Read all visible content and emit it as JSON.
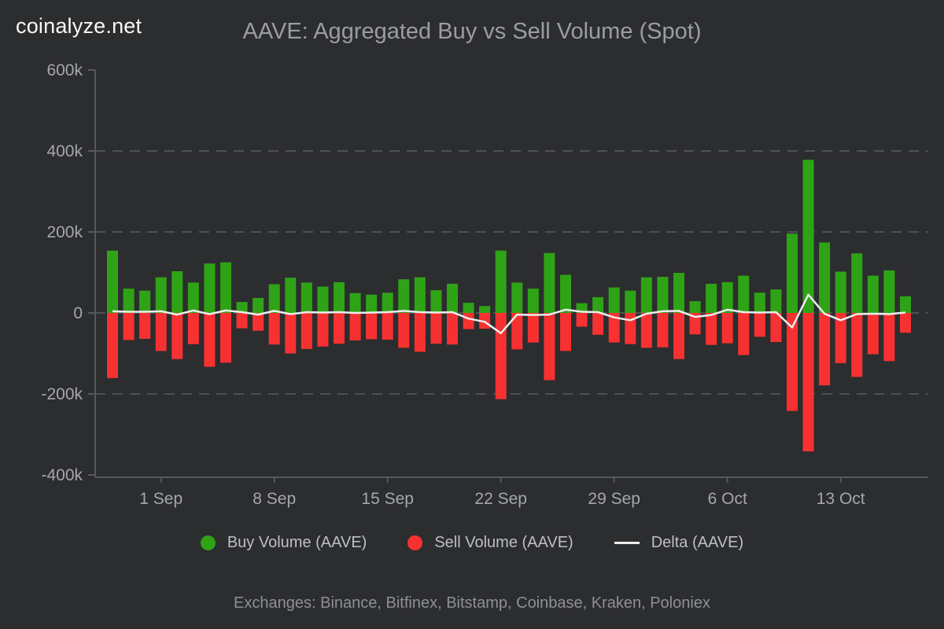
{
  "header": {
    "logo": "coinalyze.net",
    "title": "AAVE: Aggregated Buy vs Sell Volume (Spot)"
  },
  "legend": {
    "buy_label": "Buy Volume (AAVE)",
    "sell_label": "Sell Volume (AAVE)",
    "delta_label": "Delta (AAVE)"
  },
  "footer": {
    "exchanges_note": "Exchanges: Binance, Bitfinex, Bitstamp, Coinbase, Kraken, Poloniex"
  },
  "colors": {
    "background": "#2c2d2f",
    "buy_green": "#2fa316",
    "sell_red": "#f73131",
    "delta_line": "#ededed",
    "gridline": "#4e5154",
    "axis": "#56585b",
    "tick_label": "#a5a7a9",
    "title_text": "#9b9d9f",
    "legend_text": "#bdbfc1",
    "footer_text": "#8e9092",
    "logo_text": "#f8f8f8"
  },
  "chart_data": {
    "type": "bar",
    "title": "AAVE: Aggregated Buy vs Sell Volume (Spot)",
    "xlabel": "",
    "ylabel": "",
    "ylim": [
      -400000,
      600000
    ],
    "grid": "horizontal-dashed",
    "legend_position": "bottom",
    "y_ticks": [
      "600k",
      "400k",
      "200k",
      "0",
      "-200k",
      "-400k"
    ],
    "y_tick_values": [
      600000,
      400000,
      200000,
      0,
      -200000,
      -400000
    ],
    "grid_values": [
      400000,
      200000,
      0,
      -200000
    ],
    "x_tick_labels": [
      "1 Sep",
      "8 Sep",
      "15 Sep",
      "22 Sep",
      "29 Sep",
      "6 Oct",
      "13 Oct"
    ],
    "x_tick_indices": [
      3,
      10,
      17,
      24,
      31,
      38,
      45
    ],
    "x": [
      "29 Aug",
      "30 Aug",
      "31 Aug",
      "1 Sep",
      "2 Sep",
      "3 Sep",
      "4 Sep",
      "5 Sep",
      "6 Sep",
      "7 Sep",
      "8 Sep",
      "9 Sep",
      "10 Sep",
      "11 Sep",
      "12 Sep",
      "13 Sep",
      "14 Sep",
      "15 Sep",
      "16 Sep",
      "17 Sep",
      "18 Sep",
      "19 Sep",
      "20 Sep",
      "21 Sep",
      "22 Sep",
      "23 Sep",
      "24 Sep",
      "25 Sep",
      "26 Sep",
      "27 Sep",
      "28 Sep",
      "29 Sep",
      "30 Sep",
      "1 Oct",
      "2 Oct",
      "3 Oct",
      "4 Oct",
      "5 Oct",
      "6 Oct",
      "7 Oct",
      "8 Oct",
      "9 Oct",
      "10 Oct",
      "11 Oct",
      "12 Oct",
      "13 Oct",
      "14 Oct",
      "15 Oct",
      "16 Oct",
      "17 Oct"
    ],
    "series": [
      {
        "name": "Buy Volume (AAVE)",
        "type": "bar",
        "color": "#2fa316",
        "values": [
          154000,
          60000,
          55000,
          88000,
          103000,
          75000,
          122000,
          125000,
          27000,
          37000,
          71000,
          87000,
          75000,
          65000,
          76000,
          49000,
          45000,
          50000,
          83000,
          88000,
          56000,
          72000,
          25000,
          17000,
          154000,
          75000,
          60000,
          148000,
          94000,
          24000,
          39000,
          63000,
          55000,
          88000,
          89000,
          99000,
          29000,
          72000,
          76000,
          92000,
          50000,
          58000,
          196000,
          378000,
          174000,
          102000,
          147000,
          92000,
          105000,
          41000
        ]
      },
      {
        "name": "Sell Volume (AAVE)",
        "type": "bar",
        "color": "#f73131",
        "values": [
          -161000,
          -67000,
          -64000,
          -94000,
          -114000,
          -77000,
          -133000,
          -123000,
          -38000,
          -44000,
          -78000,
          -100000,
          -89000,
          -83000,
          -76000,
          -68000,
          -65000,
          -66000,
          -86000,
          -96000,
          -76000,
          -78000,
          -40000,
          -39000,
          -213000,
          -90000,
          -73000,
          -166000,
          -94000,
          -34000,
          -54000,
          -73000,
          -77000,
          -86000,
          -85000,
          -114000,
          -53000,
          -79000,
          -75000,
          -104000,
          -59000,
          -72000,
          -242000,
          -342000,
          -179000,
          -124000,
          -158000,
          -102000,
          -119000,
          -49000
        ]
      },
      {
        "name": "Delta (AAVE)",
        "type": "line",
        "color": "#ededed",
        "values": [
          4000,
          3000,
          3000,
          4000,
          -4000,
          6000,
          -3000,
          6000,
          2000,
          -4000,
          5000,
          -3000,
          2000,
          1000,
          2000,
          0,
          1000,
          2000,
          5000,
          2000,
          1000,
          2000,
          -14000,
          -22000,
          -50000,
          -4000,
          -5000,
          -4000,
          8000,
          3000,
          2000,
          -11000,
          -18000,
          -2000,
          4000,
          5000,
          -10000,
          -5000,
          8000,
          2000,
          1000,
          2000,
          -36000,
          45000,
          -2000,
          -18000,
          -3000,
          -2000,
          -3000,
          1000
        ]
      }
    ]
  }
}
